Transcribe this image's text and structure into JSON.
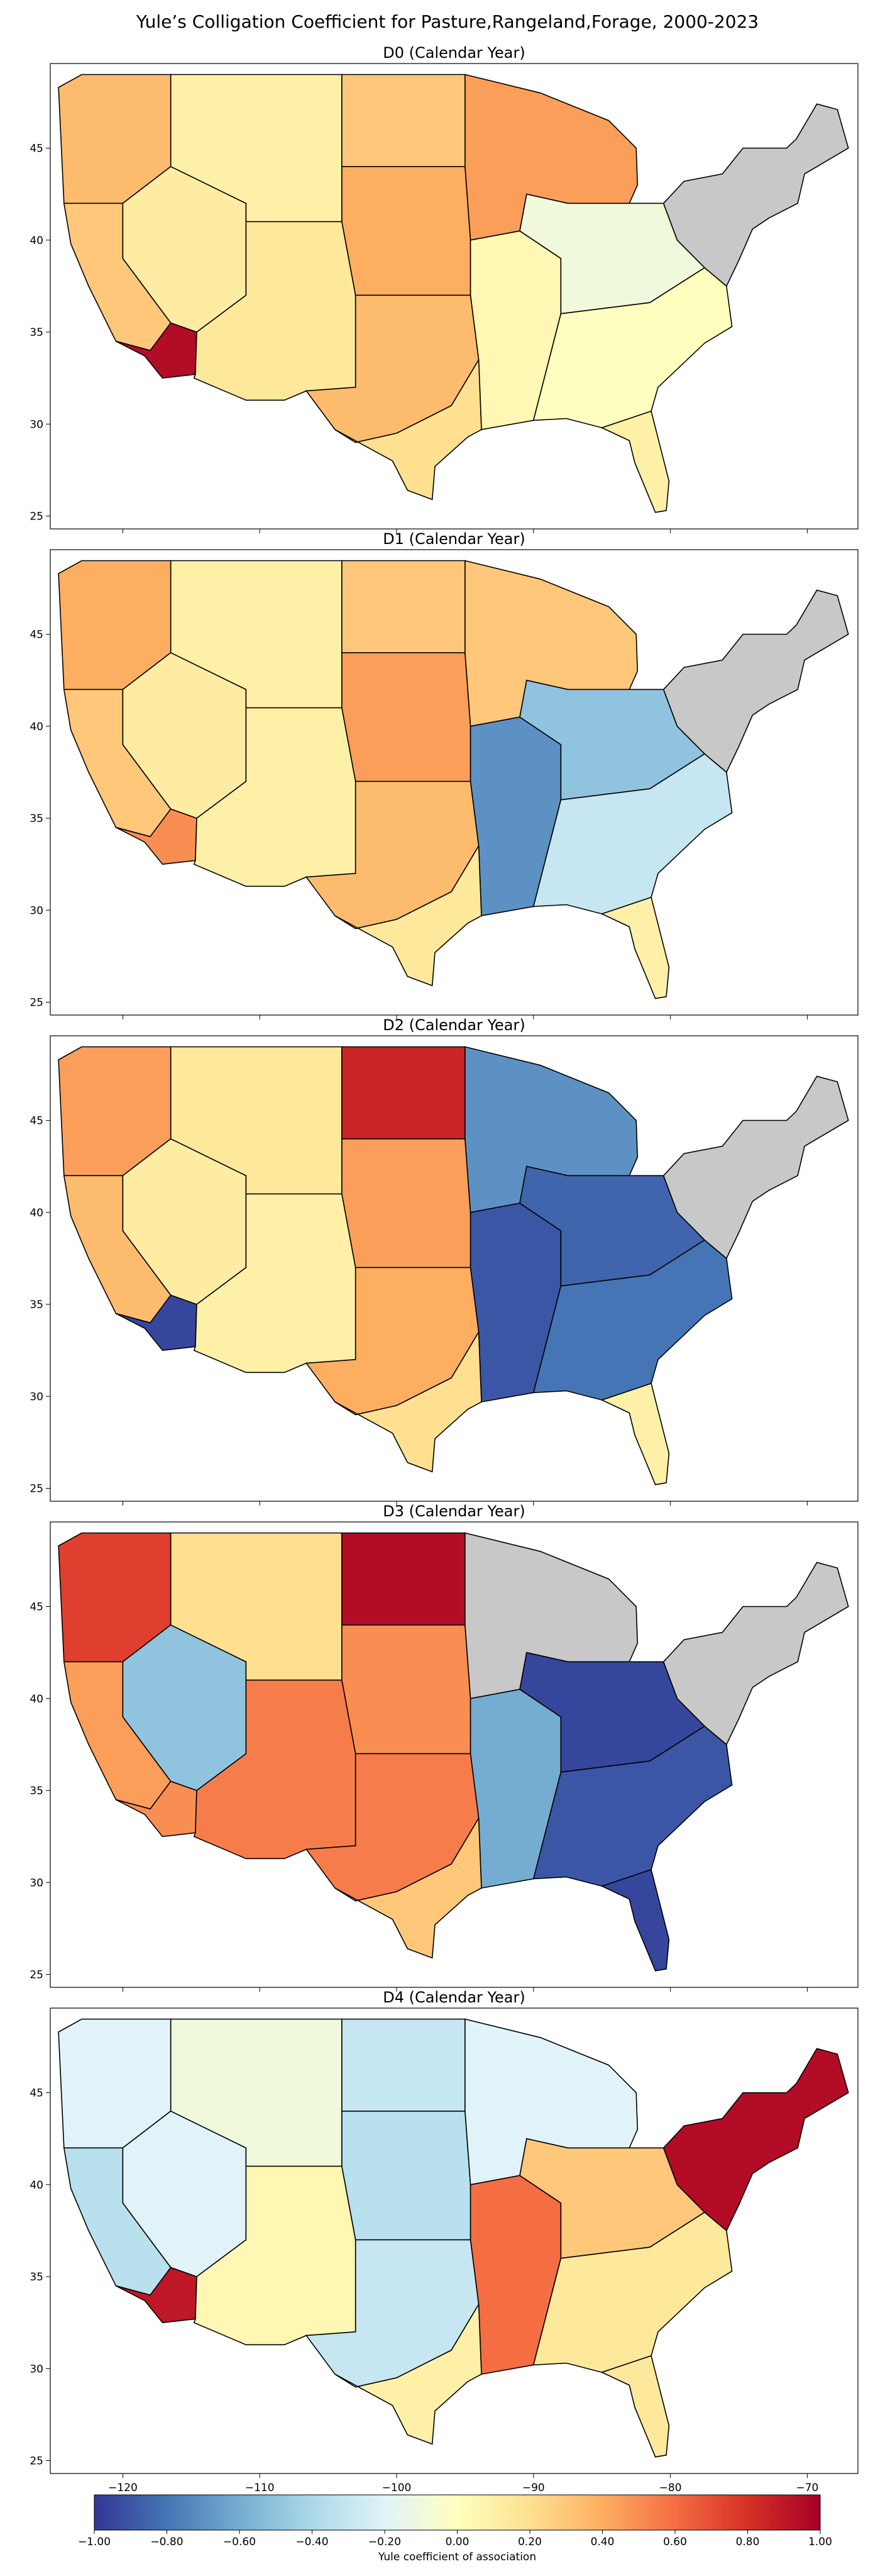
{
  "figure": {
    "title": "Yule’s Colligation Coefficient for Pasture,Rangeland,Forage, 2000-2023"
  },
  "chart_data": {
    "type": "heatmap",
    "subtype": "choropleth map of US counties",
    "x_ticks": [
      -120,
      -110,
      -100,
      -90,
      -80,
      -70
    ],
    "y_ticks": [
      45,
      40,
      35,
      30,
      25
    ],
    "xlim": [
      -125.3,
      -66.3
    ],
    "ylim": [
      24.3,
      49.6
    ],
    "panels": [
      {
        "title": "D0 (Calendar Year)",
        "regions": [
          {
            "name": "Pacific Northwest",
            "value": 0.35
          },
          {
            "name": "California",
            "value": 0.3
          },
          {
            "name": "Southern California",
            "value": 0.95
          },
          {
            "name": "Great Basin",
            "value": 0.12
          },
          {
            "name": "Mountain West",
            "value": 0.1
          },
          {
            "name": "Southwest",
            "value": 0.15
          },
          {
            "name": "Northern Plains",
            "value": 0.3
          },
          {
            "name": "Central Plains",
            "value": 0.4
          },
          {
            "name": "Southern Plains",
            "value": 0.35
          },
          {
            "name": "Texas Gulf",
            "value": 0.2
          },
          {
            "name": "Upper Midwest",
            "value": 0.45
          },
          {
            "name": "Mid-Mississippi",
            "value": 0.05
          },
          {
            "name": "Ohio Valley",
            "value": -0.1
          },
          {
            "name": "Southeast",
            "value": 0.0
          },
          {
            "name": "Florida",
            "value": 0.1
          },
          {
            "name": "Northeast",
            "value": null
          }
        ]
      },
      {
        "title": "D1 (Calendar Year)",
        "regions": [
          {
            "name": "Pacific Northwest",
            "value": 0.4
          },
          {
            "name": "California",
            "value": 0.3
          },
          {
            "name": "Southern California",
            "value": 0.5
          },
          {
            "name": "Great Basin",
            "value": 0.12
          },
          {
            "name": "Mountain West",
            "value": 0.1
          },
          {
            "name": "Southwest",
            "value": 0.1
          },
          {
            "name": "Northern Plains",
            "value": 0.3
          },
          {
            "name": "Central Plains",
            "value": 0.45
          },
          {
            "name": "Southern Plains",
            "value": 0.35
          },
          {
            "name": "Texas Gulf",
            "value": 0.15
          },
          {
            "name": "Upper Midwest",
            "value": 0.3
          },
          {
            "name": "Mid-Mississippi",
            "value": -0.7
          },
          {
            "name": "Ohio Valley",
            "value": -0.5
          },
          {
            "name": "Southeast",
            "value": -0.3
          },
          {
            "name": "Florida",
            "value": 0.1
          },
          {
            "name": "Northeast",
            "value": null
          }
        ]
      },
      {
        "title": "D2 (Calendar Year)",
        "regions": [
          {
            "name": "Pacific Northwest",
            "value": 0.45
          },
          {
            "name": "California",
            "value": 0.35
          },
          {
            "name": "Southern California",
            "value": -0.95
          },
          {
            "name": "Great Basin",
            "value": 0.12
          },
          {
            "name": "Mountain West",
            "value": 0.15
          },
          {
            "name": "Southwest",
            "value": 0.1
          },
          {
            "name": "Northern Plains",
            "value": 0.85
          },
          {
            "name": "Central Plains",
            "value": 0.45
          },
          {
            "name": "Southern Plains",
            "value": 0.4
          },
          {
            "name": "Texas Gulf",
            "value": 0.2
          },
          {
            "name": "Upper Midwest",
            "value": -0.7
          },
          {
            "name": "Mid-Mississippi",
            "value": -0.9
          },
          {
            "name": "Ohio Valley",
            "value": -0.85
          },
          {
            "name": "Southeast",
            "value": -0.8
          },
          {
            "name": "Florida",
            "value": 0.1
          },
          {
            "name": "Northeast",
            "value": null
          }
        ]
      },
      {
        "title": "D3 (Calendar Year)",
        "regions": [
          {
            "name": "Pacific Northwest",
            "value": 0.75
          },
          {
            "name": "California",
            "value": 0.45
          },
          {
            "name": "Southern California",
            "value": 0.5
          },
          {
            "name": "Great Basin",
            "value": -0.5
          },
          {
            "name": "Mountain West",
            "value": 0.2
          },
          {
            "name": "Southwest",
            "value": 0.55
          },
          {
            "name": "Northern Plains",
            "value": 0.95
          },
          {
            "name": "Central Plains",
            "value": 0.5
          },
          {
            "name": "Southern Plains",
            "value": 0.55
          },
          {
            "name": "Texas Gulf",
            "value": 0.3
          },
          {
            "name": "Upper Midwest",
            "value": null
          },
          {
            "name": "Mid-Mississippi",
            "value": -0.6
          },
          {
            "name": "Ohio Valley",
            "value": -0.95
          },
          {
            "name": "Southeast",
            "value": -0.9
          },
          {
            "name": "Florida",
            "value": -0.95
          },
          {
            "name": "Northeast",
            "value": null
          }
        ]
      },
      {
        "title": "D4 (Calendar Year)",
        "regions": [
          {
            "name": "Pacific Northwest",
            "value": -0.2
          },
          {
            "name": "California",
            "value": -0.35
          },
          {
            "name": "Southern California",
            "value": 0.9
          },
          {
            "name": "Great Basin",
            "value": -0.2
          },
          {
            "name": "Mountain West",
            "value": -0.1
          },
          {
            "name": "Southwest",
            "value": 0.05
          },
          {
            "name": "Northern Plains",
            "value": -0.3
          },
          {
            "name": "Central Plains",
            "value": -0.35
          },
          {
            "name": "Southern Plains",
            "value": -0.3
          },
          {
            "name": "Texas Gulf",
            "value": 0.1
          },
          {
            "name": "Upper Midwest",
            "value": -0.2
          },
          {
            "name": "Mid-Mississippi",
            "value": 0.6
          },
          {
            "name": "Ohio Valley",
            "value": 0.3
          },
          {
            "name": "Southeast",
            "value": 0.15
          },
          {
            "name": "Florida",
            "value": 0.15
          },
          {
            "name": "Northeast",
            "value": 0.95
          }
        ]
      }
    ],
    "colorbar": {
      "label": "Yule coefficient of association",
      "range": [
        -1.0,
        1.0
      ],
      "ticks": [
        "−1.00",
        "−0.80",
        "−0.60",
        "−0.40",
        "−0.20",
        "0.00",
        "0.20",
        "0.40",
        "0.60",
        "0.80",
        "1.00"
      ],
      "colormap": "RdYlBu_r",
      "stops": [
        "#313695",
        "#4575b4",
        "#74add1",
        "#abd9e9",
        "#e0f3f8",
        "#ffffbf",
        "#fee090",
        "#fdae61",
        "#f46d43",
        "#d73027",
        "#a50026"
      ],
      "missing_color": "#c8c8c8"
    }
  }
}
